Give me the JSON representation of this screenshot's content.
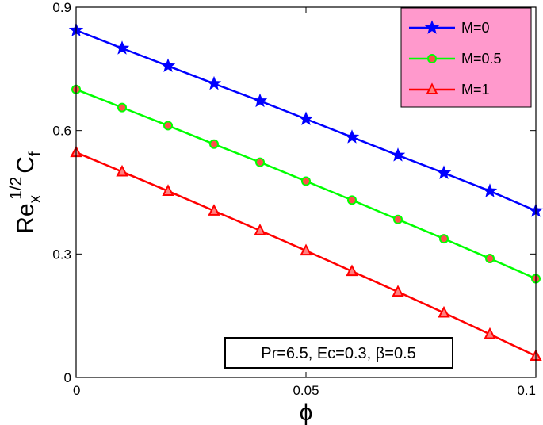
{
  "chart_data": {
    "type": "line",
    "xlabel": "ϕ",
    "ylabel": {
      "base": "Re",
      "sub": "x",
      "sup": "1/2",
      "var": "C",
      "var_sub": "f"
    },
    "xlim": [
      0,
      0.1
    ],
    "ylim": [
      0,
      0.9
    ],
    "xticks": [
      0,
      0.05,
      0.1
    ],
    "xtick_labels": [
      "0",
      "0.05",
      "0.1"
    ],
    "yticks": [
      0,
      0.3,
      0.6,
      0.9
    ],
    "ytick_labels": [
      "0",
      "0.3",
      "0.6",
      "0.9"
    ],
    "grid": false,
    "legend_position": "top-right",
    "legend_background": "#ff99cc",
    "annotation": "Pr=6.5, Ec=0.3,  β=0.5",
    "x": [
      0,
      0.01,
      0.02,
      0.03,
      0.04,
      0.05,
      0.06,
      0.07,
      0.08,
      0.09,
      0.1
    ],
    "series": [
      {
        "name": "M=0",
        "color": "#0000ff",
        "marker": "star",
        "marker_fill": "#0000ff",
        "values": [
          0.844,
          0.8,
          0.757,
          0.714,
          0.672,
          0.628,
          0.584,
          0.54,
          0.497,
          0.453,
          0.405
        ]
      },
      {
        "name": "M=0.5",
        "color": "#00ff00",
        "marker": "circle",
        "marker_fill": "#ff4d4d",
        "values": [
          0.7,
          0.656,
          0.612,
          0.567,
          0.523,
          0.477,
          0.431,
          0.384,
          0.337,
          0.289,
          0.24
        ]
      },
      {
        "name": "M=1",
        "color": "#ff0000",
        "marker": "triangle",
        "marker_fill": "#ff8080",
        "values": [
          0.547,
          0.5,
          0.453,
          0.405,
          0.357,
          0.308,
          0.258,
          0.208,
          0.157,
          0.105,
          0.052
        ]
      }
    ]
  }
}
